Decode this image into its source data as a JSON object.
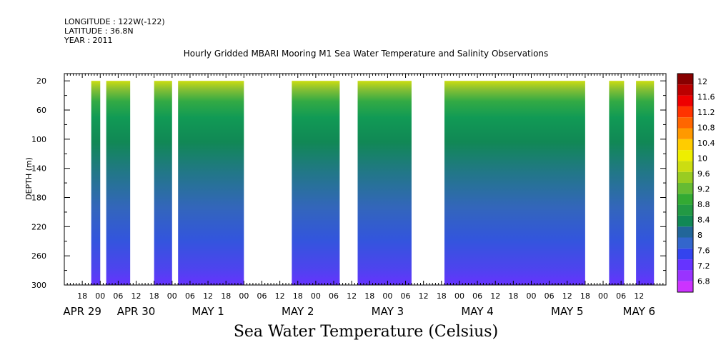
{
  "header": {
    "longitude": "LONGITUDE : 122W(-122)",
    "latitude": "LATITUDE : 36.8N",
    "year": "YEAR : 2011"
  },
  "chart_data": {
    "type": "heatmap",
    "title": "Hourly Gridded MBARI Mooring M1 Sea Water Temperature and Salinity Observations",
    "xlabel": "Sea Water Temperature (Celsius)",
    "ylabel": "DEPTH (m)",
    "ylim": [
      300,
      10
    ],
    "y_ticks": [
      20,
      60,
      100,
      140,
      180,
      220,
      260,
      300
    ],
    "x_range_hours": [
      -12,
      189
    ],
    "x_hour_ticks": [
      {
        "h": -6,
        "label": "18"
      },
      {
        "h": 0,
        "label": "00"
      },
      {
        "h": 6,
        "label": "06"
      },
      {
        "h": 12,
        "label": "12"
      },
      {
        "h": 18,
        "label": "18"
      },
      {
        "h": 24,
        "label": "00"
      },
      {
        "h": 30,
        "label": "06"
      },
      {
        "h": 36,
        "label": "12"
      },
      {
        "h": 42,
        "label": "18"
      },
      {
        "h": 48,
        "label": "00"
      },
      {
        "h": 54,
        "label": "06"
      },
      {
        "h": 60,
        "label": "12"
      },
      {
        "h": 66,
        "label": "18"
      },
      {
        "h": 72,
        "label": "00"
      },
      {
        "h": 78,
        "label": "06"
      },
      {
        "h": 84,
        "label": "12"
      },
      {
        "h": 90,
        "label": "18"
      },
      {
        "h": 96,
        "label": "00"
      },
      {
        "h": 102,
        "label": "06"
      },
      {
        "h": 108,
        "label": "12"
      },
      {
        "h": 114,
        "label": "18"
      },
      {
        "h": 120,
        "label": "00"
      },
      {
        "h": 126,
        "label": "06"
      },
      {
        "h": 132,
        "label": "12"
      },
      {
        "h": 138,
        "label": "18"
      },
      {
        "h": 144,
        "label": "00"
      },
      {
        "h": 150,
        "label": "06"
      },
      {
        "h": 156,
        "label": "12"
      },
      {
        "h": 162,
        "label": "18"
      },
      {
        "h": 168,
        "label": "00"
      },
      {
        "h": 174,
        "label": "06"
      },
      {
        "h": 180,
        "label": "12"
      }
    ],
    "x_date_labels": [
      {
        "h": -6,
        "label": "APR 29"
      },
      {
        "h": 12,
        "label": "APR 30"
      },
      {
        "h": 36,
        "label": "MAY   1"
      },
      {
        "h": 66,
        "label": "MAY   2"
      },
      {
        "h": 96,
        "label": "MAY   3"
      },
      {
        "h": 126,
        "label": "MAY   4"
      },
      {
        "h": 156,
        "label": "MAY   5"
      },
      {
        "h": 180,
        "label": "MAY   6"
      }
    ],
    "data_segments_hours": [
      [
        -3,
        0
      ],
      [
        2,
        10
      ],
      [
        18,
        24
      ],
      [
        26,
        48
      ],
      [
        64,
        80
      ],
      [
        86,
        104
      ],
      [
        115,
        162
      ],
      [
        170,
        175
      ],
      [
        179,
        185
      ]
    ],
    "colorbar": {
      "levels": [
        6.8,
        7.2,
        7.6,
        8,
        8.4,
        8.8,
        9.2,
        9.6,
        10,
        10.4,
        10.8,
        11.2,
        11.6,
        12
      ],
      "labels": [
        "12",
        "11.6",
        "11.2",
        "10.8",
        "10.4",
        "10",
        "9.6",
        "9.2",
        "8.8",
        "8.4",
        "8",
        "7.6",
        "7.2",
        "6.8"
      ],
      "colors": [
        "#cc33ff",
        "#9933ff",
        "#6633ff",
        "#3344ee",
        "#3366cc",
        "#226699",
        "#118855",
        "#229944",
        "#33aa33",
        "#66bb33",
        "#99cc22",
        "#ccdd11",
        "#eeee00",
        "#ffcc00",
        "#ff9900",
        "#ff6600",
        "#ff3300",
        "#ee0000",
        "#bb0000",
        "#880000"
      ]
    },
    "temperature_profile": [
      {
        "depth": 20,
        "temp": 9.4
      },
      {
        "depth": 40,
        "temp": 8.9
      },
      {
        "depth": 60,
        "temp": 8.6
      },
      {
        "depth": 100,
        "temp": 8.4
      },
      {
        "depth": 140,
        "temp": 8.1
      },
      {
        "depth": 180,
        "temp": 7.9
      },
      {
        "depth": 220,
        "temp": 7.7
      },
      {
        "depth": 260,
        "temp": 7.5
      },
      {
        "depth": 300,
        "temp": 7.3
      }
    ]
  }
}
